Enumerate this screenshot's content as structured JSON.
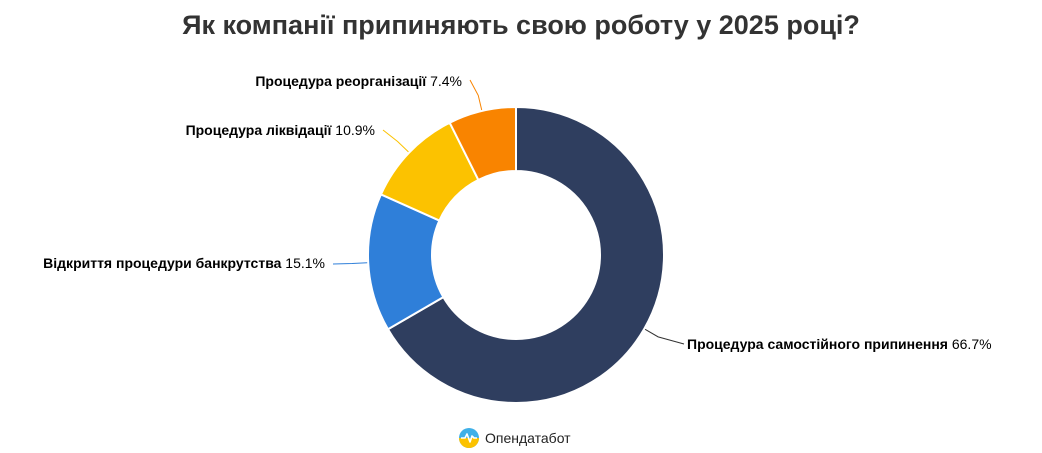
{
  "chart_data": {
    "type": "pie",
    "title": "Як компанії припиняють свою роботу у 2025 році?",
    "categories": [
      "Процедура самостійного припинення",
      "Відкриття процедури банкрутства",
      "Процедура ліквідації",
      "Процедура реорганізації"
    ],
    "values": [
      66.7,
      15.1,
      10.9,
      7.4
    ],
    "value_labels": [
      "66.7%",
      "15.1%",
      "10.9%",
      "7.4%"
    ],
    "colors": [
      "#2f3e5f",
      "#2f7fd9",
      "#fcc200",
      "#f98400"
    ],
    "donut": true
  },
  "brand": {
    "name": "Опендатабот",
    "icon": "opendatabot-logo-icon"
  }
}
